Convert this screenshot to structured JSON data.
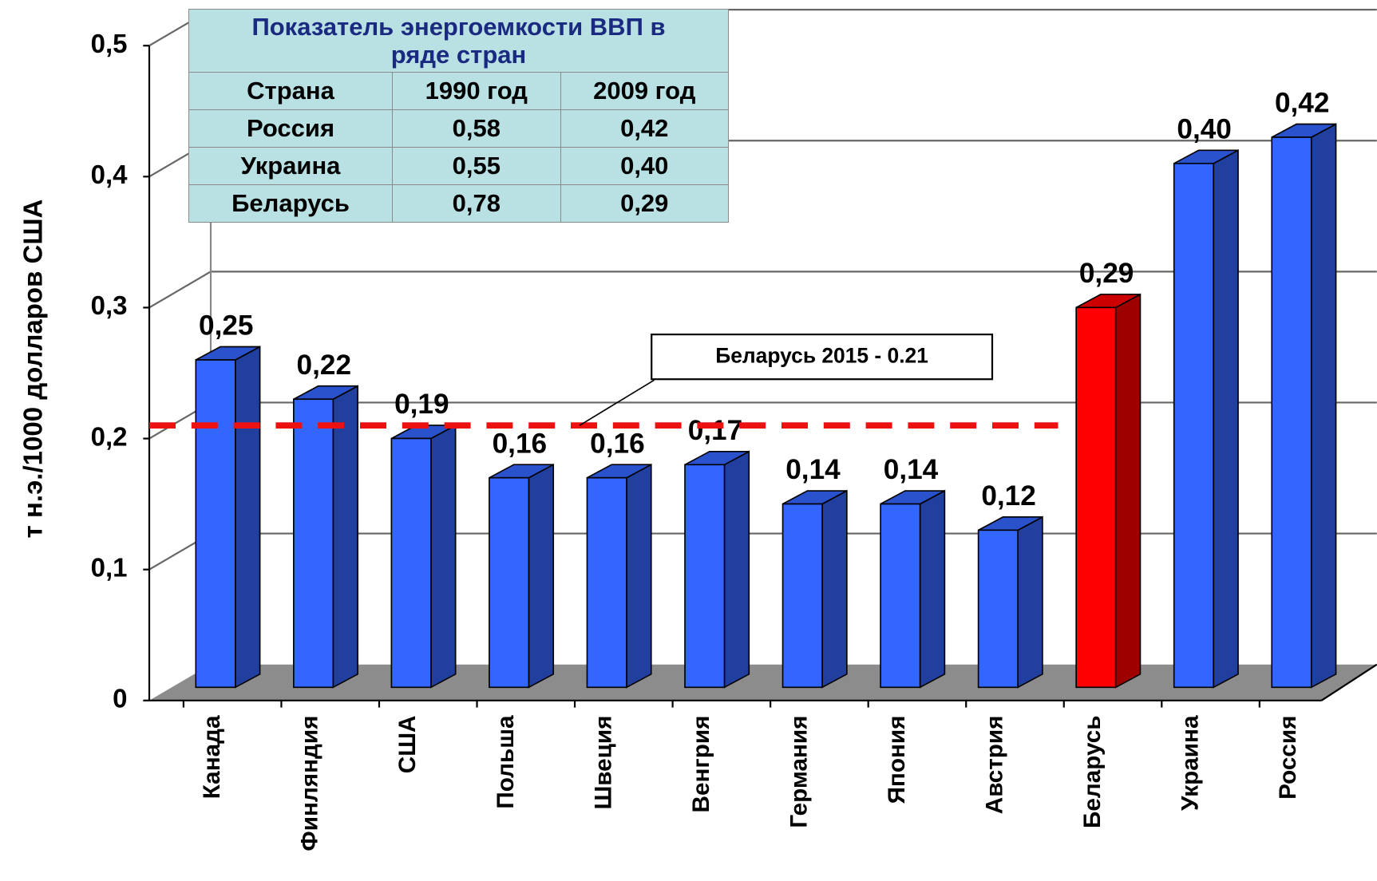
{
  "chart_data": {
    "type": "bar3d",
    "ylabel": "т н.э./1000 долларов США",
    "categories": [
      "Канада",
      "Финляндия",
      "США",
      "Польша",
      "Швеция",
      "Венгрия",
      "Германия",
      "Япония",
      "Австрия",
      "Беларусь",
      "Украина",
      "Россия"
    ],
    "values": [
      0.25,
      0.22,
      0.19,
      0.16,
      0.16,
      0.17,
      0.14,
      0.14,
      0.12,
      0.29,
      0.4,
      0.42
    ],
    "value_labels": [
      "0,25",
      "0,22",
      "0,19",
      "0,16",
      "0,16",
      "0,17",
      "0,14",
      "0,14",
      "0,12",
      "0,29",
      "0,40",
      "0,42"
    ],
    "colors": [
      "#3366ff",
      "#3366ff",
      "#3366ff",
      "#3366ff",
      "#3366ff",
      "#3366ff",
      "#3366ff",
      "#3366ff",
      "#3366ff",
      "#ff0000",
      "#3366ff",
      "#3366ff"
    ],
    "ylim": [
      0,
      0.5
    ],
    "yticks": [
      0,
      {
        "value": 0.1,
        "label": "0,1"
      },
      {
        "value": 0.2,
        "label": "0,2"
      },
      {
        "value": 0.3,
        "label": "0,3"
      },
      {
        "value": 0.4,
        "label": "0,4"
      },
      {
        "value": 0.5,
        "label": "0,5"
      }
    ],
    "grid": true,
    "reference_line": {
      "value": 0.21,
      "label": "Беларусь 2015 - 0.21",
      "color": "#ee1111"
    },
    "table": {
      "title": "Показатель энергоемкости ВВП в ряде стран",
      "header": [
        "Страна",
        "1990 год",
        "2009 год"
      ],
      "rows": [
        [
          "Россия",
          "0,58",
          "0,42"
        ],
        [
          "Украина",
          "0,55",
          "0,40"
        ],
        [
          "Беларусь",
          "0,78",
          "0,29"
        ]
      ]
    }
  }
}
